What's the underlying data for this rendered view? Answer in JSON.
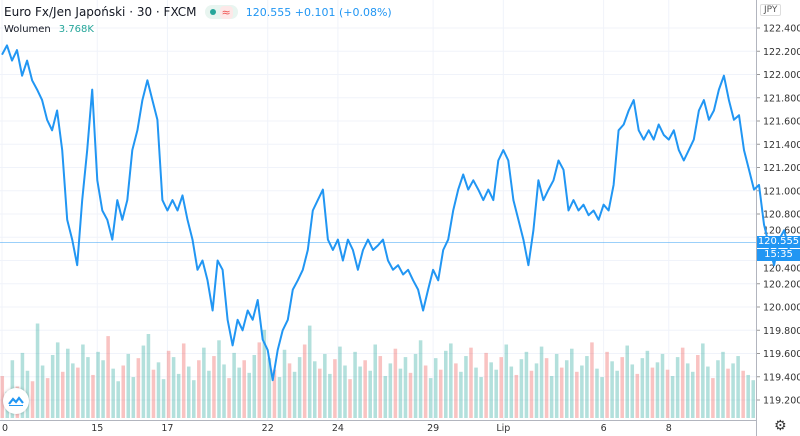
{
  "header": {
    "title": "Euro Fx/Jen Japoński · 30 · FXCM",
    "price": "120.555",
    "change": "+0.101 (+0.08%)",
    "volume_label": "Wolumen",
    "volume_value": "3.768K",
    "currency": "JPY",
    "last_price": "120.555",
    "countdown": "15:35"
  },
  "colors": {
    "line": "#2196f3",
    "up": "#26a69a",
    "down": "#ef5350",
    "grid": "#f0f3fa"
  },
  "chart_data": {
    "type": "line",
    "title": "Euro Fx/Jen Japoński · 30 · FXCM",
    "ylim": [
      119.1,
      122.6
    ],
    "y_ticks": [
      "122.400",
      "122.200",
      "122.000",
      "121.800",
      "121.600",
      "121.400",
      "121.200",
      "121.000",
      "120.800",
      "120.600",
      "120.400",
      "120.200",
      "120.000",
      "119.800",
      "119.600",
      "119.400",
      "119.200"
    ],
    "x_ticks": [
      {
        "label": "0",
        "i": 0
      },
      {
        "label": "15",
        "i": 19
      },
      {
        "label": "17",
        "i": 33
      },
      {
        "label": "22",
        "i": 53
      },
      {
        "label": "24",
        "i": 67
      },
      {
        "label": "29",
        "i": 86
      },
      {
        "label": "Lip",
        "i": 100
      },
      {
        "label": "6",
        "i": 120
      },
      {
        "label": "8",
        "i": 133
      }
    ],
    "n_slots": 151,
    "values": [
      122.17,
      122.25,
      122.12,
      122.21,
      121.99,
      122.12,
      121.95,
      121.87,
      121.78,
      121.61,
      121.52,
      121.69,
      121.35,
      120.75,
      120.58,
      120.36,
      120.92,
      121.35,
      121.87,
      121.09,
      120.83,
      120.75,
      120.58,
      120.92,
      120.75,
      120.92,
      121.35,
      121.52,
      121.78,
      121.95,
      121.78,
      121.61,
      120.92,
      120.83,
      120.92,
      120.83,
      120.96,
      120.75,
      120.58,
      120.32,
      120.4,
      120.23,
      119.97,
      120.4,
      120.32,
      119.89,
      119.67,
      119.89,
      119.8,
      119.97,
      119.89,
      120.06,
      119.72,
      119.63,
      119.37,
      119.63,
      119.8,
      119.89,
      120.15,
      120.23,
      120.32,
      120.49,
      120.83,
      120.92,
      121.01,
      120.58,
      120.49,
      120.58,
      120.4,
      120.58,
      120.49,
      120.32,
      120.49,
      120.58,
      120.49,
      120.53,
      120.58,
      120.4,
      120.32,
      120.36,
      120.28,
      120.32,
      120.23,
      120.15,
      119.97,
      120.15,
      120.32,
      120.23,
      120.49,
      120.58,
      120.83,
      121.01,
      121.14,
      121.01,
      121.09,
      121.01,
      120.92,
      121.01,
      120.92,
      121.26,
      121.35,
      121.26,
      120.92,
      120.75,
      120.58,
      120.36,
      120.66,
      121.09,
      120.92,
      121.01,
      121.09,
      121.26,
      121.18,
      120.83,
      120.92,
      120.83,
      120.88,
      120.79,
      120.83,
      120.75,
      120.88,
      120.83,
      121.05,
      121.52,
      121.57,
      121.69,
      121.78,
      121.52,
      121.44,
      121.52,
      121.44,
      121.57,
      121.48,
      121.44,
      121.52,
      121.35,
      121.26,
      121.35,
      121.44,
      121.69,
      121.78,
      121.61,
      121.69,
      121.87,
      121.99,
      121.78,
      121.61,
      121.65,
      121.35,
      121.18,
      121.01,
      121.05,
      120.71,
      120.53,
      120.36,
      120.58,
      120.66,
      120.49
    ],
    "volume_series": [
      40,
      25,
      55,
      30,
      62,
      45,
      35,
      90,
      50,
      38,
      60,
      72,
      44,
      66,
      52,
      48,
      70,
      58,
      41,
      63,
      55,
      78,
      47,
      35,
      50,
      61,
      39,
      57,
      69,
      80,
      46,
      53,
      37,
      64,
      58,
      42,
      71,
      49,
      36,
      55,
      67,
      45,
      59,
      74,
      51,
      38,
      62,
      48,
      55,
      43,
      60,
      72,
      84,
      57,
      46,
      39,
      65,
      52,
      44,
      58,
      70,
      88,
      54,
      47,
      61,
      42,
      56,
      68,
      50,
      37,
      63,
      49,
      55,
      45,
      70,
      59,
      40,
      52,
      66,
      47,
      58,
      43,
      61,
      74,
      50,
      38,
      57,
      46,
      64,
      71,
      52,
      44,
      59,
      67,
      48,
      39,
      62,
      53,
      46,
      58,
      70,
      49,
      41,
      56,
      63,
      45,
      52,
      68,
      57,
      40,
      61,
      48,
      55,
      66,
      44,
      50,
      59,
      72,
      47,
      39,
      63,
      54,
      45,
      58,
      69,
      51,
      42,
      57,
      64,
      48,
      53,
      61,
      46,
      40,
      58,
      67,
      52,
      44,
      60,
      71,
      49,
      38,
      55,
      63,
      47,
      52,
      59,
      45,
      41,
      36
    ]
  }
}
